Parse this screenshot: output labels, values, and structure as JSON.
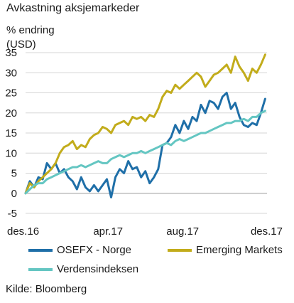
{
  "chart_data": {
    "type": "line",
    "title": "Avkastning aksjemarkeder",
    "ylabel": "% endring (USD)",
    "ylim": [
      -5,
      35
    ],
    "yticks": [
      -5,
      0,
      5,
      10,
      15,
      20,
      25,
      30,
      35
    ],
    "xlim": [
      "2016-12-01",
      "2017-12-31"
    ],
    "xticks": [
      {
        "label": "des.16",
        "date": "2016-12-01"
      },
      {
        "label": "apr.17",
        "date": "2017-04-15"
      },
      {
        "label": "aug.17",
        "date": "2017-08-15"
      },
      {
        "label": "des.17",
        "date": "2017-12-31"
      }
    ],
    "grid": true,
    "legend": "bottom",
    "series": [
      {
        "name": "OSEFX - Norge",
        "color": "#1f6fa8",
        "points": [
          [
            "2016-12-01",
            0
          ],
          [
            "2016-12-08",
            3
          ],
          [
            "2016-12-15",
            1.5
          ],
          [
            "2016-12-22",
            4
          ],
          [
            "2016-12-29",
            3.5
          ],
          [
            "2017-01-05",
            7.5
          ],
          [
            "2017-01-12",
            6
          ],
          [
            "2017-01-19",
            7.5
          ],
          [
            "2017-01-26",
            5
          ],
          [
            "2017-02-02",
            6
          ],
          [
            "2017-02-09",
            4
          ],
          [
            "2017-02-16",
            3
          ],
          [
            "2017-02-23",
            1
          ],
          [
            "2017-03-02",
            4
          ],
          [
            "2017-03-09",
            1.5
          ],
          [
            "2017-03-16",
            0.5
          ],
          [
            "2017-03-23",
            2
          ],
          [
            "2017-03-30",
            0.5
          ],
          [
            "2017-04-06",
            2
          ],
          [
            "2017-04-13",
            3.5
          ],
          [
            "2017-04-20",
            -1
          ],
          [
            "2017-04-27",
            4
          ],
          [
            "2017-05-04",
            6
          ],
          [
            "2017-05-11",
            5
          ],
          [
            "2017-05-18",
            8
          ],
          [
            "2017-05-25",
            6
          ],
          [
            "2017-06-01",
            6.5
          ],
          [
            "2017-06-08",
            4
          ],
          [
            "2017-06-15",
            5.5
          ],
          [
            "2017-06-22",
            2.5
          ],
          [
            "2017-06-29",
            4
          ],
          [
            "2017-07-06",
            6
          ],
          [
            "2017-07-13",
            12
          ],
          [
            "2017-07-20",
            12.5
          ],
          [
            "2017-07-27",
            14
          ],
          [
            "2017-08-03",
            17
          ],
          [
            "2017-08-10",
            15
          ],
          [
            "2017-08-17",
            18
          ],
          [
            "2017-08-24",
            16
          ],
          [
            "2017-08-31",
            19
          ],
          [
            "2017-09-07",
            18
          ],
          [
            "2017-09-14",
            22
          ],
          [
            "2017-09-21",
            20
          ],
          [
            "2017-09-28",
            23
          ],
          [
            "2017-10-05",
            22.5
          ],
          [
            "2017-10-12",
            21
          ],
          [
            "2017-10-19",
            24
          ],
          [
            "2017-10-26",
            25
          ],
          [
            "2017-11-02",
            21
          ],
          [
            "2017-11-09",
            22.5
          ],
          [
            "2017-11-16",
            19
          ],
          [
            "2017-11-23",
            17
          ],
          [
            "2017-11-30",
            16.5
          ],
          [
            "2017-12-07",
            17.5
          ],
          [
            "2017-12-14",
            17
          ],
          [
            "2017-12-21",
            20
          ],
          [
            "2017-12-28",
            23.5
          ]
        ]
      },
      {
        "name": "Emerging Markets",
        "color": "#c2ac1b",
        "points": [
          [
            "2016-12-01",
            0
          ],
          [
            "2016-12-08",
            2.5
          ],
          [
            "2016-12-15",
            1.5
          ],
          [
            "2016-12-22",
            3
          ],
          [
            "2016-12-29",
            4
          ],
          [
            "2017-01-05",
            5
          ],
          [
            "2017-01-12",
            6
          ],
          [
            "2017-01-19",
            7.5
          ],
          [
            "2017-01-26",
            10
          ],
          [
            "2017-02-02",
            11.5
          ],
          [
            "2017-02-09",
            12
          ],
          [
            "2017-02-16",
            13
          ],
          [
            "2017-02-23",
            11
          ],
          [
            "2017-03-02",
            12
          ],
          [
            "2017-03-09",
            11.5
          ],
          [
            "2017-03-16",
            13.5
          ],
          [
            "2017-03-23",
            14.5
          ],
          [
            "2017-03-30",
            15
          ],
          [
            "2017-04-06",
            16.5
          ],
          [
            "2017-04-13",
            16
          ],
          [
            "2017-04-20",
            15
          ],
          [
            "2017-04-27",
            17
          ],
          [
            "2017-05-04",
            17.5
          ],
          [
            "2017-05-11",
            18
          ],
          [
            "2017-05-18",
            17
          ],
          [
            "2017-05-25",
            19
          ],
          [
            "2017-06-01",
            18.5
          ],
          [
            "2017-06-08",
            19
          ],
          [
            "2017-06-15",
            18
          ],
          [
            "2017-06-22",
            19.5
          ],
          [
            "2017-06-29",
            19
          ],
          [
            "2017-07-06",
            21
          ],
          [
            "2017-07-13",
            24
          ],
          [
            "2017-07-20",
            25.5
          ],
          [
            "2017-07-27",
            25
          ],
          [
            "2017-08-03",
            27
          ],
          [
            "2017-08-10",
            26
          ],
          [
            "2017-08-17",
            27
          ],
          [
            "2017-08-24",
            28
          ],
          [
            "2017-08-31",
            29
          ],
          [
            "2017-09-07",
            30
          ],
          [
            "2017-09-14",
            29
          ],
          [
            "2017-09-21",
            26.5
          ],
          [
            "2017-09-28",
            28
          ],
          [
            "2017-10-05",
            29.5
          ],
          [
            "2017-10-12",
            30
          ],
          [
            "2017-10-19",
            31
          ],
          [
            "2017-10-26",
            32
          ],
          [
            "2017-11-02",
            30
          ],
          [
            "2017-11-09",
            34
          ],
          [
            "2017-11-16",
            31.5
          ],
          [
            "2017-11-23",
            30
          ],
          [
            "2017-11-30",
            28
          ],
          [
            "2017-12-07",
            31
          ],
          [
            "2017-12-14",
            30
          ],
          [
            "2017-12-21",
            32
          ],
          [
            "2017-12-28",
            34.5
          ]
        ]
      },
      {
        "name": "Verdensindeksen",
        "color": "#64c6c2",
        "points": [
          [
            "2016-12-01",
            0
          ],
          [
            "2016-12-08",
            1
          ],
          [
            "2016-12-15",
            2
          ],
          [
            "2016-12-22",
            2.5
          ],
          [
            "2016-12-29",
            2.5
          ],
          [
            "2017-01-05",
            3.5
          ],
          [
            "2017-01-12",
            4
          ],
          [
            "2017-01-19",
            4.5
          ],
          [
            "2017-01-26",
            5
          ],
          [
            "2017-02-02",
            5.5
          ],
          [
            "2017-02-09",
            6
          ],
          [
            "2017-02-16",
            6.5
          ],
          [
            "2017-02-23",
            6.5
          ],
          [
            "2017-03-02",
            7
          ],
          [
            "2017-03-09",
            6.5
          ],
          [
            "2017-03-16",
            7
          ],
          [
            "2017-03-23",
            7.5
          ],
          [
            "2017-03-30",
            8
          ],
          [
            "2017-04-06",
            7.5
          ],
          [
            "2017-04-13",
            7.5
          ],
          [
            "2017-04-20",
            8.5
          ],
          [
            "2017-04-27",
            9
          ],
          [
            "2017-05-04",
            9.5
          ],
          [
            "2017-05-11",
            9
          ],
          [
            "2017-05-18",
            9.5
          ],
          [
            "2017-05-25",
            10
          ],
          [
            "2017-06-01",
            10
          ],
          [
            "2017-06-08",
            10.5
          ],
          [
            "2017-06-15",
            10
          ],
          [
            "2017-06-22",
            10.5
          ],
          [
            "2017-06-29",
            11
          ],
          [
            "2017-07-06",
            11.5
          ],
          [
            "2017-07-13",
            12
          ],
          [
            "2017-07-20",
            12.5
          ],
          [
            "2017-07-27",
            12
          ],
          [
            "2017-08-03",
            13
          ],
          [
            "2017-08-10",
            13.5
          ],
          [
            "2017-08-17",
            13
          ],
          [
            "2017-08-24",
            13.5
          ],
          [
            "2017-08-31",
            14
          ],
          [
            "2017-09-07",
            14.5
          ],
          [
            "2017-09-14",
            15
          ],
          [
            "2017-09-21",
            15
          ],
          [
            "2017-09-28",
            15.5
          ],
          [
            "2017-10-05",
            16
          ],
          [
            "2017-10-12",
            16.5
          ],
          [
            "2017-10-19",
            17
          ],
          [
            "2017-10-26",
            17.5
          ],
          [
            "2017-11-02",
            17.5
          ],
          [
            "2017-11-09",
            18
          ],
          [
            "2017-11-16",
            18
          ],
          [
            "2017-11-23",
            18.5
          ],
          [
            "2017-11-30",
            18
          ],
          [
            "2017-12-07",
            19
          ],
          [
            "2017-12-14",
            19
          ],
          [
            "2017-12-21",
            20
          ],
          [
            "2017-12-28",
            20.5
          ]
        ]
      }
    ]
  },
  "source": "Kilde: Bloomberg"
}
